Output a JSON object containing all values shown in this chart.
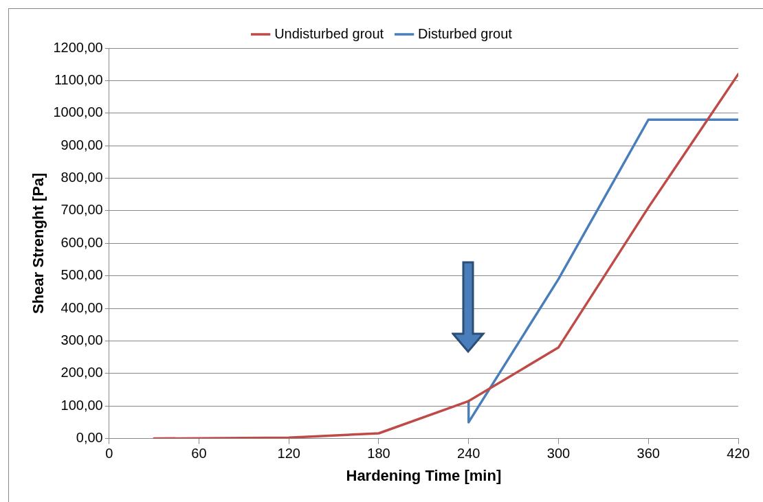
{
  "chart_data": {
    "type": "line",
    "xlabel": "Hardening Time [min]",
    "ylabel": "Shear Strenght [Pa]",
    "series": [
      {
        "name": "Disturbed grout",
        "color": "#4a7ebb",
        "x": [
          240,
          240,
          300,
          360,
          420
        ],
        "values": [
          115,
          50,
          490,
          980,
          980
        ]
      },
      {
        "name": "Undisturbed grout",
        "color": "#be4b48",
        "x": [
          30,
          60,
          120,
          180,
          240,
          300,
          360,
          420
        ],
        "values": [
          0,
          1,
          3,
          16,
          115,
          280,
          710,
          1120
        ]
      }
    ],
    "xlim": [
      0,
      420
    ],
    "xticks": [
      0,
      60,
      120,
      180,
      240,
      300,
      360,
      420
    ],
    "ylim": [
      0,
      1200
    ],
    "yticks": [
      {
        "value": 0,
        "label": "0,00"
      },
      {
        "value": 100,
        "label": "100,00"
      },
      {
        "value": 200,
        "label": "200,00"
      },
      {
        "value": 300,
        "label": "300,00"
      },
      {
        "value": 400,
        "label": "400,00"
      },
      {
        "value": 500,
        "label": "500,00"
      },
      {
        "value": 600,
        "label": "600,00"
      },
      {
        "value": 700,
        "label": "700,00"
      },
      {
        "value": 800,
        "label": "800,00"
      },
      {
        "value": 900,
        "label": "900,00"
      },
      {
        "value": 1000,
        "label": "1000,00"
      },
      {
        "value": 1100,
        "label": "1100,00"
      },
      {
        "value": 1200,
        "label": "1200,00"
      }
    ],
    "grid": "y",
    "legend": "top",
    "marker": "none",
    "line_style": "solid"
  }
}
